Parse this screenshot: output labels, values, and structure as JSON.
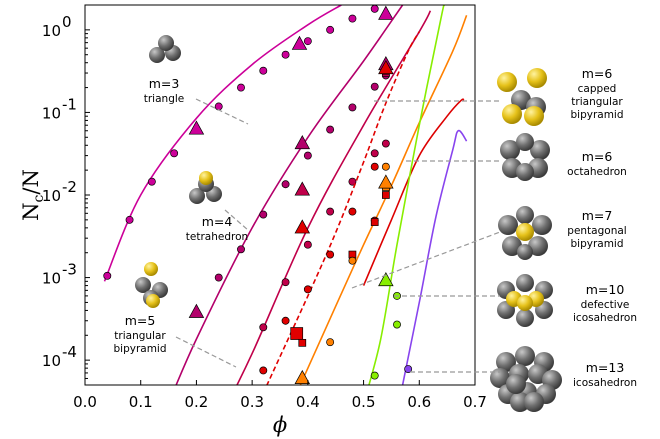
{
  "chart_data": {
    "type": "scatter",
    "title": "",
    "xlabel": "ϕ",
    "ylabel_main": "N",
    "ylabel_sub": "c",
    "ylabel_tail": "/N",
    "xlim": [
      0.0,
      0.7
    ],
    "ylim": [
      5e-05,
      2.0
    ],
    "yscale": "log",
    "grid": false,
    "x_ticks": [
      0.0,
      0.1,
      0.2,
      0.3,
      0.4,
      0.5,
      0.6,
      0.7
    ],
    "x_tick_labels": [
      "0.0",
      "0.1",
      "0.2",
      "0.3",
      "0.4",
      "0.5",
      "0.6",
      "0.7"
    ],
    "y_ticks": [
      0.0001,
      0.001,
      0.01,
      0.1,
      1.0
    ],
    "y_tick_base": [
      "10",
      "10",
      "10",
      "10",
      "10"
    ],
    "y_tick_exp": [
      "-4",
      "-3",
      "-2",
      "-1",
      "0"
    ],
    "series": [
      {
        "m": "3",
        "color": "#cc0099",
        "curve": [
          [
            0.035,
            0.0009
          ],
          [
            0.1,
            0.01
          ],
          [
            0.2,
            0.085
          ],
          [
            0.3,
            0.38
          ],
          [
            0.4,
            1.15
          ],
          [
            0.46,
            2.0
          ]
        ],
        "circles": [
          [
            0.04,
            0.00105
          ],
          [
            0.08,
            0.005
          ],
          [
            0.12,
            0.0145
          ],
          [
            0.16,
            0.032
          ],
          [
            0.2,
            0.063
          ],
          [
            0.24,
            0.118
          ],
          [
            0.28,
            0.2
          ],
          [
            0.32,
            0.32
          ],
          [
            0.36,
            0.5
          ],
          [
            0.4,
            0.73
          ],
          [
            0.44,
            1.0
          ],
          [
            0.48,
            1.37
          ],
          [
            0.52,
            1.8
          ]
        ],
        "triangles": [
          [
            0.2,
            0.063
          ],
          [
            0.385,
            0.67
          ],
          [
            0.54,
            1.55
          ]
        ],
        "squares": []
      },
      {
        "m": "4",
        "color": "#b3006b",
        "curve": [
          [
            0.15,
            3e-05
          ],
          [
            0.2,
            0.00018
          ],
          [
            0.3,
            0.004
          ],
          [
            0.4,
            0.05
          ],
          [
            0.5,
            0.42
          ],
          [
            0.57,
            2.0
          ]
        ],
        "circles": [
          [
            0.24,
            0.001
          ],
          [
            0.28,
            0.0022
          ],
          [
            0.32,
            0.0058
          ],
          [
            0.36,
            0.0135
          ],
          [
            0.4,
            0.03
          ],
          [
            0.44,
            0.062
          ],
          [
            0.48,
            0.115
          ],
          [
            0.52,
            0.205
          ],
          [
            0.54,
            0.28
          ]
        ],
        "triangles": [
          [
            0.2,
            0.00038
          ],
          [
            0.39,
            0.042
          ],
          [
            0.54,
            0.38
          ]
        ],
        "squares": []
      },
      {
        "m": "5",
        "color": "#c0004a",
        "curve": [
          [
            0.25,
            2.5e-05
          ],
          [
            0.3,
            0.00012
          ],
          [
            0.4,
            0.004
          ],
          [
            0.5,
            0.07
          ],
          [
            0.6,
            0.95
          ],
          [
            0.62,
            1.7
          ]
        ],
        "circles": [
          [
            0.32,
            0.00025
          ],
          [
            0.36,
            0.00088
          ],
          [
            0.4,
            0.0025
          ],
          [
            0.44,
            0.0063
          ],
          [
            0.48,
            0.0145
          ],
          [
            0.52,
            0.032
          ],
          [
            0.54,
            0.042
          ]
        ],
        "triangles": [
          [
            0.39,
            0.0115
          ]
        ],
        "squares": [
          [
            0.54,
            0.3
          ]
        ]
      },
      {
        "m": "6 capped",
        "color": "#e00000",
        "dashed": true,
        "curve": [
          [
            0.32,
            4e-05
          ],
          [
            0.4,
            0.0006
          ],
          [
            0.45,
            0.0035
          ],
          [
            0.5,
            0.025
          ],
          [
            0.54,
            0.13
          ],
          [
            0.58,
            0.55
          ],
          [
            0.6,
            0.95
          ]
        ],
        "circles": [
          [
            0.32,
            7.5e-05
          ],
          [
            0.36,
            0.0003
          ],
          [
            0.4,
            0.00072
          ],
          [
            0.44,
            0.0019
          ],
          [
            0.48,
            0.0063
          ],
          [
            0.52,
            0.022
          ]
        ],
        "triangles": [
          [
            0.39,
            0.004
          ],
          [
            0.54,
            0.34
          ]
        ],
        "squares": [
          [
            0.38,
            0.00021
          ],
          [
            0.39,
            0.000162
          ],
          [
            0.48,
            0.0019
          ],
          [
            0.54,
            0.32
          ]
        ]
      },
      {
        "m": "6 octa",
        "color": "#ff8000",
        "curve": [
          [
            0.38,
            4e-05
          ],
          [
            0.45,
            0.00045
          ],
          [
            0.5,
            0.0025
          ],
          [
            0.55,
            0.013
          ],
          [
            0.6,
            0.075
          ],
          [
            0.66,
            0.55
          ],
          [
            0.685,
            1.5
          ]
        ],
        "circles": [
          [
            0.44,
            0.000165
          ],
          [
            0.48,
            0.0016
          ],
          [
            0.54,
            0.022
          ]
        ],
        "triangles": [
          [
            0.39,
            6e-05
          ],
          [
            0.54,
            0.014
          ]
        ],
        "squares": [
          [
            0.54,
            0.0125
          ]
        ]
      },
      {
        "m": "6 octa red",
        "color": "#dd0000",
        "curve": [
          [
            0.5,
            0.0008
          ],
          [
            0.55,
            0.005
          ],
          [
            0.6,
            0.03
          ],
          [
            0.65,
            0.09
          ],
          [
            0.675,
            0.14
          ],
          [
            0.68,
            0.14
          ]
        ],
        "circles": [
          [
            0.52,
            0.0049
          ]
        ],
        "triangles": [],
        "squares": [
          [
            0.54,
            0.01
          ],
          [
            0.52,
            0.0047
          ]
        ]
      },
      {
        "m": "7",
        "color": "#88ee00",
        "curve": [
          [
            0.5,
            3e-05
          ],
          [
            0.53,
            0.00017
          ],
          [
            0.56,
            0.0025
          ],
          [
            0.6,
            0.07
          ],
          [
            0.64,
            1.5
          ],
          [
            0.645,
            2.0
          ]
        ],
        "circles": [
          [
            0.52,
            6.5e-05
          ],
          [
            0.56,
            0.00027
          ],
          [
            0.56,
            0.0006
          ]
        ],
        "triangles": [
          [
            0.54,
            0.00092
          ]
        ],
        "squares": []
      },
      {
        "m": "10",
        "color": "#8844ee",
        "curve": [
          [
            0.57,
            5e-05
          ],
          [
            0.6,
            0.0005
          ],
          [
            0.63,
            0.0055
          ],
          [
            0.66,
            0.035
          ],
          [
            0.67,
            0.06
          ],
          [
            0.685,
            0.045
          ]
        ],
        "circles": [
          [
            0.58,
            7.8e-05
          ]
        ],
        "triangles": [],
        "squares": []
      }
    ]
  },
  "annotations": [
    {
      "m": "m=3",
      "name": "triangle"
    },
    {
      "m": "m=4",
      "name": "tetrahedron"
    },
    {
      "m": "m=5",
      "name": "triangular\nbipyramid"
    },
    {
      "m": "m=6",
      "name": "capped\ntriangular\nbipyramid"
    },
    {
      "m": "m=6",
      "name": "octahedron"
    },
    {
      "m": "m=7",
      "name": "pentagonal\nbipyramid"
    },
    {
      "m": "m=10",
      "name": "defective\nicosahedron"
    },
    {
      "m": "m=13",
      "name": "icosahedron"
    }
  ],
  "colors": {
    "sphere_grey": "#6e6e6e",
    "sphere_yellow": "#e6c21a",
    "leader_line": "#999999"
  }
}
